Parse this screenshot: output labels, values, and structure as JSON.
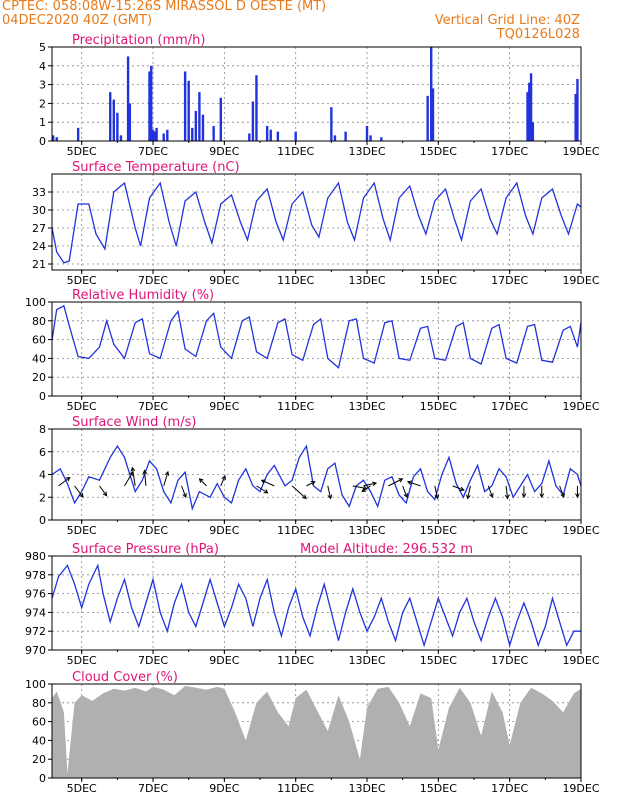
{
  "header": {
    "station": "CPTEC:   058:08W-15:26S   MIRASSOL D OESTE (MT)",
    "date": "04DEC2020 40Z (GMT)",
    "grid_note": "Vertical Grid Line: 40Z",
    "code": "TQ0126L028"
  },
  "colors": {
    "header": "#e87a1a",
    "title": "#e0157a",
    "series": "#2233dd",
    "cloud": "#b0b0b0",
    "arrow": "#000000"
  },
  "x_axis": {
    "ticks": [
      5,
      7,
      9,
      11,
      13,
      15,
      17,
      19
    ],
    "tick_labels": [
      "5DEC",
      "7DEC",
      "9DEC",
      "11DEC",
      "13DEC",
      "15DEC",
      "17DEC",
      "19DEC"
    ],
    "range_days": [
      4.167,
      19.0
    ]
  },
  "chart_data": [
    {
      "type": "bar",
      "title": "Precipitation (mm/h)",
      "ylim": [
        0,
        5
      ],
      "y_ticks": [
        "0",
        "1",
        "2",
        "3",
        "4",
        "5"
      ],
      "x": [
        4.2,
        4.3,
        4.9,
        5.8,
        5.9,
        6.0,
        6.1,
        6.3,
        6.35,
        6.9,
        6.95,
        7.0,
        7.05,
        7.1,
        7.3,
        7.4,
        7.9,
        8.0,
        8.1,
        8.2,
        8.3,
        8.4,
        8.7,
        8.9,
        9.7,
        9.8,
        9.9,
        10.2,
        10.3,
        10.5,
        11.0,
        12.0,
        12.1,
        12.4,
        13.0,
        13.1,
        13.4,
        14.7,
        14.8,
        14.85,
        17.5,
        17.55,
        17.6,
        17.65,
        18.85,
        18.9
      ],
      "values": [
        0.3,
        0.2,
        0.7,
        2.6,
        2.2,
        1.5,
        0.3,
        4.5,
        2.0,
        3.7,
        4.0,
        0.6,
        0.5,
        0.7,
        0.4,
        0.6,
        3.7,
        3.2,
        0.7,
        1.6,
        2.6,
        1.4,
        0.8,
        2.3,
        0.4,
        2.1,
        3.5,
        0.8,
        0.6,
        0.5,
        0.5,
        1.8,
        0.3,
        0.5,
        0.8,
        0.3,
        0.2,
        2.4,
        5.0,
        2.8,
        2.6,
        3.1,
        3.6,
        1.0,
        2.5,
        3.3
      ],
      "ylabel": ""
    },
    {
      "type": "line",
      "title": "Surface Temperature (nC)",
      "ylim": [
        20,
        36
      ],
      "y_ticks": [
        "21",
        "24",
        "27",
        "30",
        "33"
      ],
      "y_tick_values": [
        21,
        24,
        27,
        30,
        33
      ],
      "x": [
        4.17,
        4.3,
        4.5,
        4.65,
        4.9,
        5.2,
        5.4,
        5.65,
        5.9,
        6.2,
        6.5,
        6.65,
        6.9,
        7.2,
        7.45,
        7.65,
        7.9,
        8.2,
        8.45,
        8.65,
        8.9,
        9.2,
        9.45,
        9.65,
        9.9,
        10.2,
        10.45,
        10.65,
        10.9,
        11.2,
        11.45,
        11.65,
        11.9,
        12.2,
        12.45,
        12.65,
        12.9,
        13.2,
        13.45,
        13.65,
        13.9,
        14.2,
        14.45,
        14.65,
        14.9,
        15.2,
        15.45,
        15.65,
        15.9,
        16.2,
        16.45,
        16.65,
        16.9,
        17.2,
        17.45,
        17.65,
        17.9,
        18.2,
        18.45,
        18.65,
        18.9,
        19.0
      ],
      "values": [
        27,
        23,
        21.2,
        21.5,
        31,
        31,
        26,
        23.5,
        33,
        34.5,
        27,
        24,
        32,
        34.5,
        28,
        24,
        31.5,
        33,
        28,
        24.5,
        31,
        32.5,
        28,
        25,
        31.5,
        33.5,
        28,
        25,
        31,
        33,
        27.5,
        25.5,
        32,
        34.5,
        28,
        25,
        32,
        34.5,
        28.5,
        25,
        32,
        34,
        29,
        26,
        31.5,
        33.5,
        28.5,
        25,
        31.5,
        33.5,
        28.5,
        26,
        32,
        34.5,
        29,
        26,
        32,
        33.5,
        29,
        26,
        31,
        30.5
      ],
      "ylabel": ""
    },
    {
      "type": "line",
      "title": "Relative Humidity (%)",
      "ylim": [
        0,
        100
      ],
      "y_ticks": [
        "0",
        "20",
        "40",
        "60",
        "80",
        "100"
      ],
      "y_tick_values": [
        0,
        20,
        40,
        60,
        80,
        100
      ],
      "x": [
        4.17,
        4.3,
        4.5,
        4.65,
        4.9,
        5.2,
        5.5,
        5.7,
        5.9,
        6.2,
        6.5,
        6.7,
        6.9,
        7.2,
        7.5,
        7.7,
        7.9,
        8.2,
        8.5,
        8.7,
        8.9,
        9.2,
        9.5,
        9.7,
        9.9,
        10.2,
        10.5,
        10.7,
        10.9,
        11.2,
        11.5,
        11.7,
        11.9,
        12.2,
        12.5,
        12.7,
        12.9,
        13.2,
        13.5,
        13.7,
        13.9,
        14.2,
        14.5,
        14.7,
        14.9,
        15.2,
        15.5,
        15.7,
        15.9,
        16.2,
        16.5,
        16.7,
        16.9,
        17.2,
        17.5,
        17.7,
        17.9,
        18.2,
        18.5,
        18.7,
        18.9,
        19.0
      ],
      "values": [
        60,
        92,
        96,
        75,
        42,
        40,
        52,
        80,
        55,
        40,
        78,
        82,
        45,
        40,
        80,
        90,
        50,
        42,
        80,
        88,
        52,
        40,
        80,
        84,
        47,
        40,
        78,
        82,
        44,
        38,
        76,
        82,
        40,
        30,
        80,
        82,
        40,
        35,
        78,
        80,
        40,
        38,
        72,
        74,
        40,
        38,
        74,
        78,
        40,
        34,
        72,
        76,
        40,
        35,
        74,
        76,
        38,
        36,
        70,
        74,
        52,
        78
      ],
      "ylabel": ""
    },
    {
      "type": "line",
      "title": "Surface Wind (m/s)",
      "ylim": [
        0,
        8
      ],
      "y_ticks": [
        "0",
        "2",
        "4",
        "6",
        "8"
      ],
      "y_tick_values": [
        0,
        2,
        4,
        6,
        8
      ],
      "x": [
        4.17,
        4.4,
        4.6,
        4.8,
        5.0,
        5.2,
        5.5,
        5.8,
        6.0,
        6.2,
        6.5,
        6.7,
        6.9,
        7.1,
        7.3,
        7.5,
        7.7,
        7.9,
        8.1,
        8.3,
        8.6,
        8.8,
        9.0,
        9.2,
        9.4,
        9.6,
        9.8,
        10.0,
        10.2,
        10.4,
        10.7,
        10.9,
        11.1,
        11.3,
        11.5,
        11.7,
        11.9,
        12.1,
        12.3,
        12.5,
        12.7,
        12.9,
        13.1,
        13.3,
        13.5,
        13.7,
        13.9,
        14.1,
        14.3,
        14.5,
        14.7,
        14.9,
        15.1,
        15.3,
        15.5,
        15.7,
        15.9,
        16.1,
        16.3,
        16.5,
        16.7,
        16.9,
        17.1,
        17.3,
        17.5,
        17.7,
        17.9,
        18.1,
        18.3,
        18.5,
        18.7,
        18.9,
        19.0
      ],
      "values": [
        4.0,
        4.5,
        3.2,
        1.5,
        2.5,
        3.8,
        3.5,
        5.5,
        6.5,
        5.5,
        2.5,
        3.5,
        5.2,
        4.5,
        2.5,
        1.5,
        3.5,
        4.2,
        1.0,
        2.5,
        2.0,
        3.2,
        2.0,
        1.5,
        3.5,
        4.5,
        3.0,
        2.5,
        4.0,
        4.8,
        3.0,
        3.5,
        5.5,
        6.5,
        3.0,
        2.5,
        4.5,
        5.0,
        2.2,
        1.2,
        3.0,
        3.5,
        2.5,
        1.2,
        3.5,
        3.8,
        2.2,
        1.5,
        3.8,
        4.5,
        2.5,
        1.8,
        4.0,
        5.5,
        3.2,
        2.0,
        3.5,
        4.8,
        2.5,
        3.0,
        4.5,
        3.8,
        2.0,
        3.0,
        4.0,
        2.5,
        3.2,
        5.2,
        3.0,
        2.2,
        4.5,
        4.0,
        3.0
      ],
      "arrows": [
        {
          "x": 4.35,
          "u": 0.8,
          "v": 0.6
        },
        {
          "x": 4.8,
          "u": 0.6,
          "v": -0.8
        },
        {
          "x": 5.5,
          "u": 0.5,
          "v": -0.7
        },
        {
          "x": 6.2,
          "u": 0.6,
          "v": 1.0
        },
        {
          "x": 6.5,
          "u": -0.2,
          "v": 1.3
        },
        {
          "x": 6.8,
          "u": -0.1,
          "v": 1.1
        },
        {
          "x": 7.3,
          "u": 0.3,
          "v": 1.0
        },
        {
          "x": 7.8,
          "u": 0.3,
          "v": -0.8
        },
        {
          "x": 8.5,
          "u": -0.5,
          "v": 0.5
        },
        {
          "x": 8.9,
          "u": 0.3,
          "v": 0.7
        },
        {
          "x": 9.9,
          "u": 0.8,
          "v": -0.5
        },
        {
          "x": 10.4,
          "u": -0.9,
          "v": 0.4
        },
        {
          "x": 10.9,
          "u": 1.0,
          "v": -0.9
        },
        {
          "x": 11.3,
          "u": 0.6,
          "v": 0.3
        },
        {
          "x": 11.9,
          "u": 0.2,
          "v": -0.9
        },
        {
          "x": 12.6,
          "u": 1.0,
          "v": -0.2
        },
        {
          "x": 12.9,
          "u": 0.9,
          "v": 0.2
        },
        {
          "x": 13.1,
          "u": -0.6,
          "v": -0.4
        },
        {
          "x": 13.6,
          "u": 1.0,
          "v": 0.5
        },
        {
          "x": 14.0,
          "u": 0.3,
          "v": -0.8
        },
        {
          "x": 14.5,
          "u": -0.9,
          "v": 0.3
        },
        {
          "x": 14.9,
          "u": 0.2,
          "v": -0.9
        },
        {
          "x": 15.4,
          "u": 0.8,
          "v": -0.3
        },
        {
          "x": 15.9,
          "u": -0.2,
          "v": -0.9
        },
        {
          "x": 16.4,
          "u": 0.3,
          "v": -0.8
        },
        {
          "x": 16.9,
          "u": 0.1,
          "v": -0.9
        },
        {
          "x": 17.4,
          "u": 0.0,
          "v": -0.8
        },
        {
          "x": 17.9,
          "u": 0.0,
          "v": -0.8
        },
        {
          "x": 18.4,
          "u": 0.3,
          "v": -0.8
        },
        {
          "x": 18.9,
          "u": 0.0,
          "v": -0.8
        }
      ],
      "ylabel": ""
    },
    {
      "type": "line",
      "title": "Surface Pressure (hPa)",
      "annotation": "Model Altitude: 296.532 m",
      "ylim": [
        970,
        980
      ],
      "y_ticks": [
        "970",
        "972",
        "974",
        "976",
        "978",
        "980"
      ],
      "y_tick_values": [
        970,
        972,
        974,
        976,
        978,
        980
      ],
      "x": [
        4.17,
        4.35,
        4.6,
        4.8,
        5.0,
        5.2,
        5.45,
        5.6,
        5.8,
        6.0,
        6.2,
        6.4,
        6.6,
        6.8,
        7.0,
        7.2,
        7.4,
        7.6,
        7.8,
        8.0,
        8.2,
        8.4,
        8.6,
        8.8,
        9.0,
        9.2,
        9.4,
        9.6,
        9.8,
        10.0,
        10.2,
        10.4,
        10.6,
        10.8,
        11.0,
        11.2,
        11.4,
        11.6,
        11.8,
        12.0,
        12.2,
        12.4,
        12.6,
        12.8,
        13.0,
        13.2,
        13.4,
        13.6,
        13.8,
        14.0,
        14.2,
        14.4,
        14.6,
        14.8,
        15.0,
        15.2,
        15.4,
        15.6,
        15.8,
        16.0,
        16.2,
        16.4,
        16.6,
        16.8,
        17.0,
        17.2,
        17.4,
        17.6,
        17.8,
        18.0,
        18.2,
        18.4,
        18.6,
        18.8,
        19.0
      ],
      "values": [
        975.5,
        977.8,
        979.0,
        977.0,
        974.5,
        977.0,
        979.0,
        976.0,
        973.0,
        975.5,
        977.5,
        974.5,
        972.5,
        975.0,
        977.5,
        974.0,
        972.0,
        975.0,
        977.0,
        974.0,
        972.5,
        975.0,
        977.5,
        975.0,
        972.5,
        974.5,
        977.0,
        975.5,
        972.5,
        975.5,
        977.5,
        974.0,
        971.5,
        974.5,
        976.5,
        973.5,
        971.5,
        974.5,
        977.0,
        974.0,
        971.0,
        974.0,
        976.5,
        974.0,
        972.0,
        973.5,
        975.5,
        973.0,
        971.0,
        974.0,
        975.5,
        973.0,
        970.5,
        973.0,
        975.5,
        973.5,
        971.5,
        974.0,
        975.5,
        973.0,
        971.0,
        973.5,
        975.5,
        973.5,
        970.5,
        973.0,
        975.0,
        973.0,
        970.5,
        972.5,
        975.5,
        973.0,
        970.5,
        972.0,
        972.0
      ],
      "ylabel": ""
    },
    {
      "type": "area",
      "title": "Cloud Cover (%)",
      "ylim": [
        0,
        100
      ],
      "y_ticks": [
        "0",
        "20",
        "40",
        "60",
        "80",
        "100"
      ],
      "y_tick_values": [
        0,
        20,
        40,
        60,
        80,
        100
      ],
      "x": [
        4.17,
        4.3,
        4.5,
        4.6,
        4.8,
        5.0,
        5.3,
        5.6,
        5.9,
        6.2,
        6.5,
        6.8,
        7.0,
        7.3,
        7.6,
        7.9,
        8.2,
        8.5,
        8.8,
        9.0,
        9.3,
        9.6,
        9.9,
        10.2,
        10.5,
        10.8,
        11.0,
        11.3,
        11.6,
        11.9,
        12.2,
        12.5,
        12.8,
        13.0,
        13.3,
        13.6,
        13.9,
        14.2,
        14.5,
        14.8,
        15.0,
        15.3,
        15.6,
        15.9,
        16.2,
        16.5,
        16.8,
        17.0,
        17.3,
        17.6,
        17.9,
        18.2,
        18.5,
        18.8,
        19.0
      ],
      "values": [
        85,
        92,
        70,
        5,
        80,
        88,
        82,
        90,
        95,
        93,
        96,
        92,
        97,
        94,
        88,
        98,
        96,
        94,
        97,
        95,
        70,
        40,
        80,
        92,
        70,
        55,
        85,
        94,
        72,
        50,
        88,
        60,
        20,
        75,
        95,
        97,
        80,
        55,
        90,
        85,
        30,
        75,
        96,
        80,
        45,
        92,
        70,
        35,
        80,
        96,
        90,
        82,
        70,
        90,
        95
      ],
      "ylabel": ""
    }
  ]
}
